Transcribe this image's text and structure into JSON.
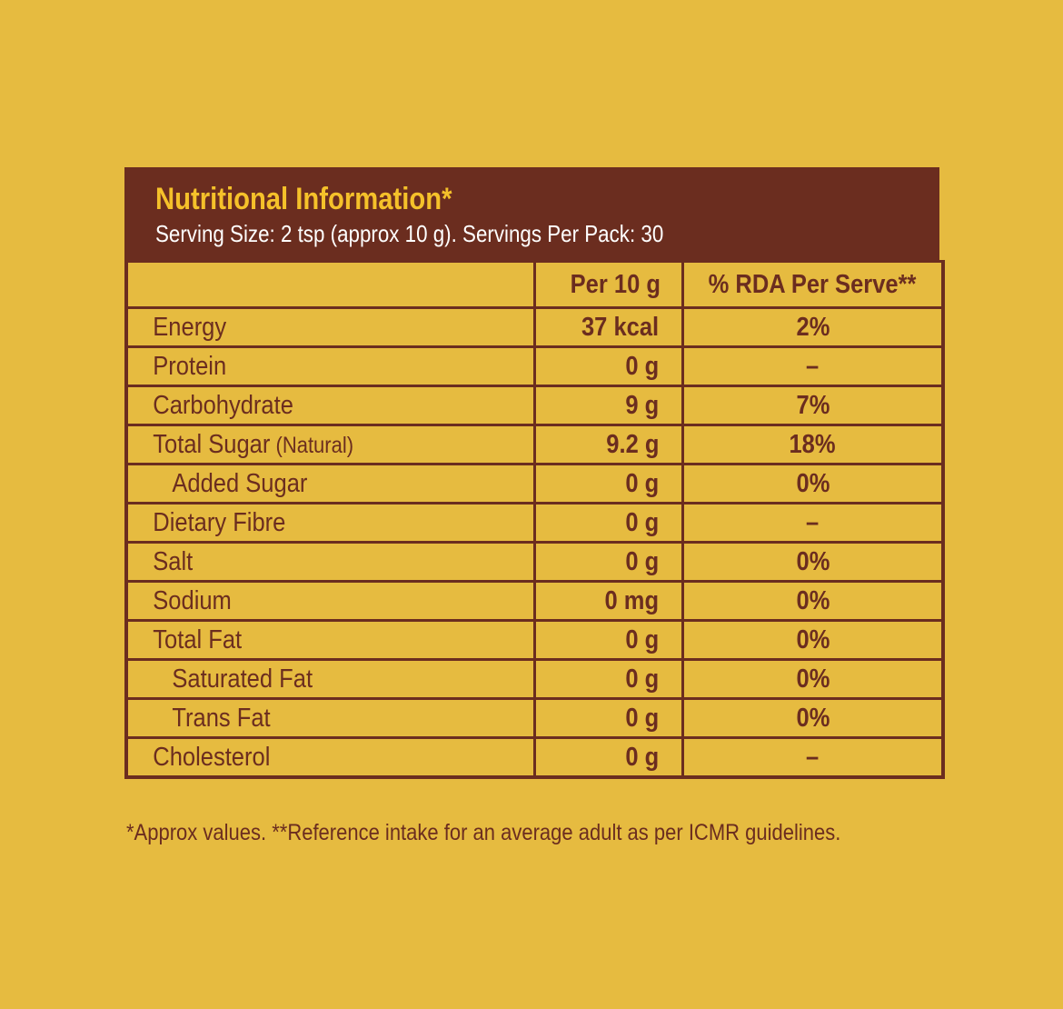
{
  "header": {
    "title": "Nutritional Information*",
    "subtitle": "Serving Size: 2 tsp (approx 10 g). Servings Per Pack: 30"
  },
  "table": {
    "columns": [
      "",
      "Per 10 g",
      "% RDA Per Serve**"
    ],
    "rows": [
      {
        "name": "Energy",
        "note": "",
        "indent": false,
        "per": "37 kcal",
        "rda": "2%"
      },
      {
        "name": "Protein",
        "note": "",
        "indent": false,
        "per": "0 g",
        "rda": "–"
      },
      {
        "name": "Carbohydrate",
        "note": "",
        "indent": false,
        "per": "9 g",
        "rda": "7%"
      },
      {
        "name": "Total Sugar",
        "note": " (Natural)",
        "indent": false,
        "per": "9.2 g",
        "rda": "18%"
      },
      {
        "name": "Added Sugar",
        "note": "",
        "indent": true,
        "per": "0 g",
        "rda": "0%"
      },
      {
        "name": "Dietary Fibre",
        "note": "",
        "indent": false,
        "per": "0 g",
        "rda": "–"
      },
      {
        "name": "Salt",
        "note": "",
        "indent": false,
        "per": "0 g",
        "rda": "0%"
      },
      {
        "name": "Sodium",
        "note": "",
        "indent": false,
        "per": "0 mg",
        "rda": "0%"
      },
      {
        "name": "Total Fat",
        "note": "",
        "indent": false,
        "per": "0 g",
        "rda": "0%"
      },
      {
        "name": "Saturated Fat",
        "note": "",
        "indent": true,
        "per": "0 g",
        "rda": "0%"
      },
      {
        "name": "Trans Fat",
        "note": "",
        "indent": true,
        "per": "0 g",
        "rda": "0%"
      },
      {
        "name": "Cholesterol",
        "note": "",
        "indent": false,
        "per": "0 g",
        "rda": "–"
      }
    ]
  },
  "footnote": "*Approx values. **Reference intake for an average adult as per ICMR guidelines.",
  "colors": {
    "background": "#e6bb40",
    "brown": "#6b2d1f",
    "title_yellow": "#f5c12a"
  }
}
